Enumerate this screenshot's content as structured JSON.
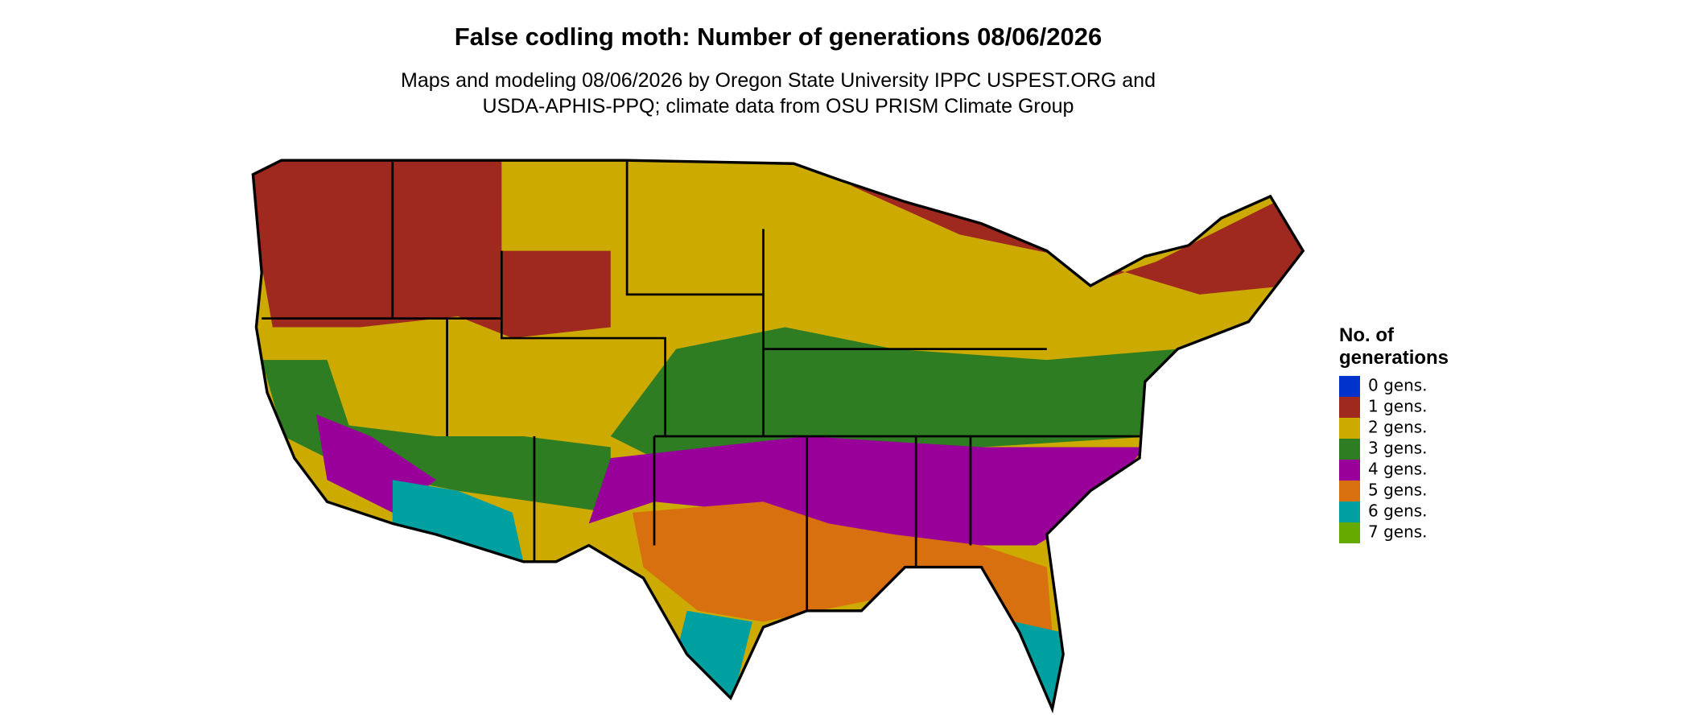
{
  "title": "False codling moth: Number of generations 08/06/2026",
  "subtitle": [
    "Maps and modeling 08/06/2026 by Oregon State University IPPC USPEST.ORG and",
    "USDA-APHIS-PPQ; climate data from OSU PRISM Climate Group"
  ],
  "legend": {
    "title": [
      "No. of",
      "generations"
    ],
    "items": [
      {
        "label": "0 gens.",
        "color": "#0033cc"
      },
      {
        "label": "1 gens.",
        "color": "#a0291f"
      },
      {
        "label": "2 gens.",
        "color": "#ccaa00"
      },
      {
        "label": "3 gens.",
        "color": "#2e7d22"
      },
      {
        "label": "4 gens.",
        "color": "#990099"
      },
      {
        "label": "5 gens.",
        "color": "#d87010"
      },
      {
        "label": "6 gens.",
        "color": "#00a0a0"
      },
      {
        "label": "7 gens.",
        "color": "#66aa00"
      }
    ]
  }
}
